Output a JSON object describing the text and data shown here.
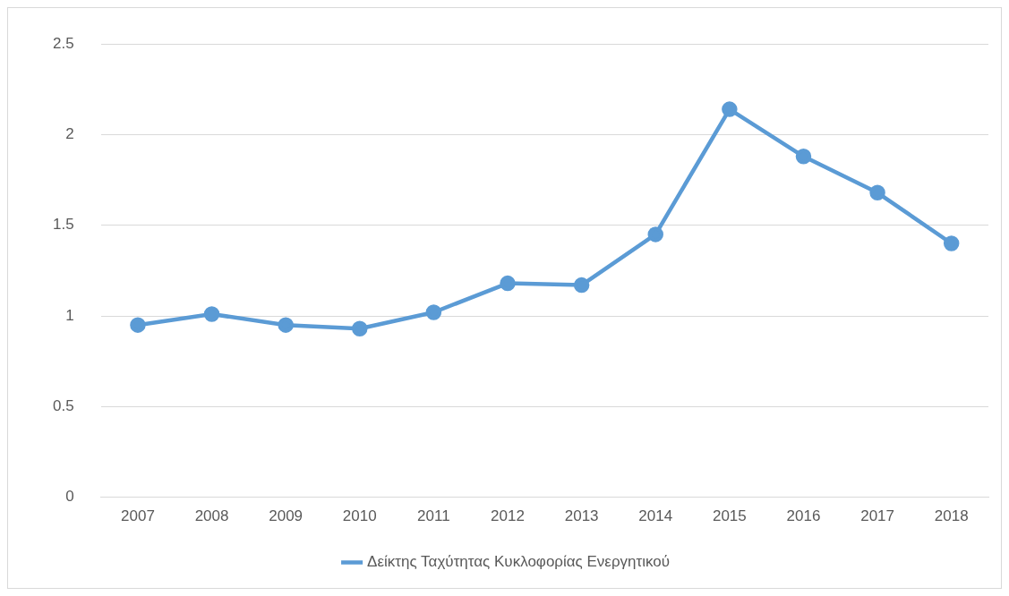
{
  "chart_data": {
    "type": "line",
    "categories": [
      "2007",
      "2008",
      "2009",
      "2010",
      "2011",
      "2012",
      "2013",
      "2014",
      "2015",
      "2016",
      "2017",
      "2018"
    ],
    "series": [
      {
        "name": "Δείκτης Ταχύτητας Κυκλοφορίας Ενεργητικού",
        "color": "#5b9bd5",
        "values": [
          0.95,
          1.01,
          0.95,
          0.93,
          1.02,
          1.18,
          1.17,
          1.45,
          2.14,
          1.88,
          1.68,
          1.4
        ]
      }
    ],
    "ylim": [
      0,
      2.5
    ],
    "yticks": [
      0,
      0.5,
      1,
      1.5,
      2,
      2.5
    ],
    "grid": "y",
    "legend": "bottom",
    "marker": "circle",
    "line_style": "solid"
  }
}
